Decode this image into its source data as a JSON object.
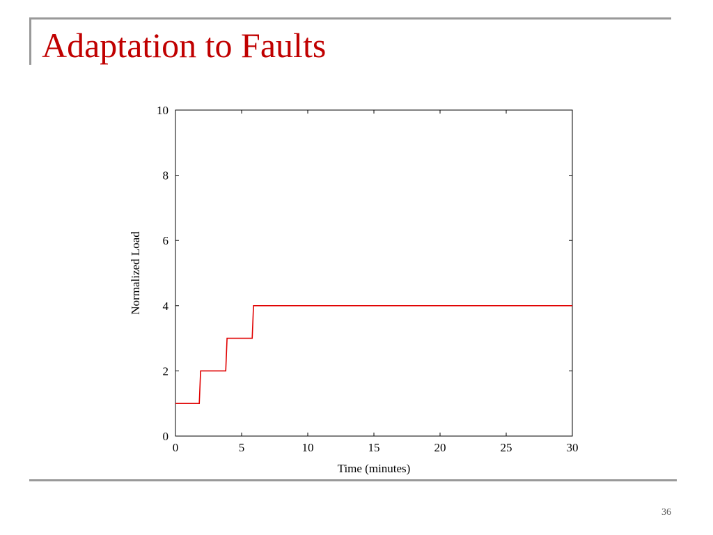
{
  "slide": {
    "title": "Adaptation to Faults",
    "page_number": "36"
  },
  "colors": {
    "title": "#c00000",
    "series": "#e00000",
    "frame": "#999999"
  },
  "chart_data": {
    "type": "line",
    "title": "",
    "xlabel": "Time (minutes)",
    "ylabel": "Normalized Load",
    "xlim": [
      0,
      30
    ],
    "ylim": [
      0,
      10
    ],
    "xticks": [
      0,
      5,
      10,
      15,
      20,
      25,
      30
    ],
    "yticks": [
      0,
      2,
      4,
      6,
      8,
      10
    ],
    "grid": false,
    "legend": "none",
    "series": [
      {
        "step": true,
        "x": [
          0,
          1.8,
          1.9,
          3.8,
          3.9,
          5.8,
          5.9,
          30
        ],
        "y": [
          1,
          1,
          2,
          2,
          3,
          3,
          4,
          4
        ]
      }
    ]
  }
}
